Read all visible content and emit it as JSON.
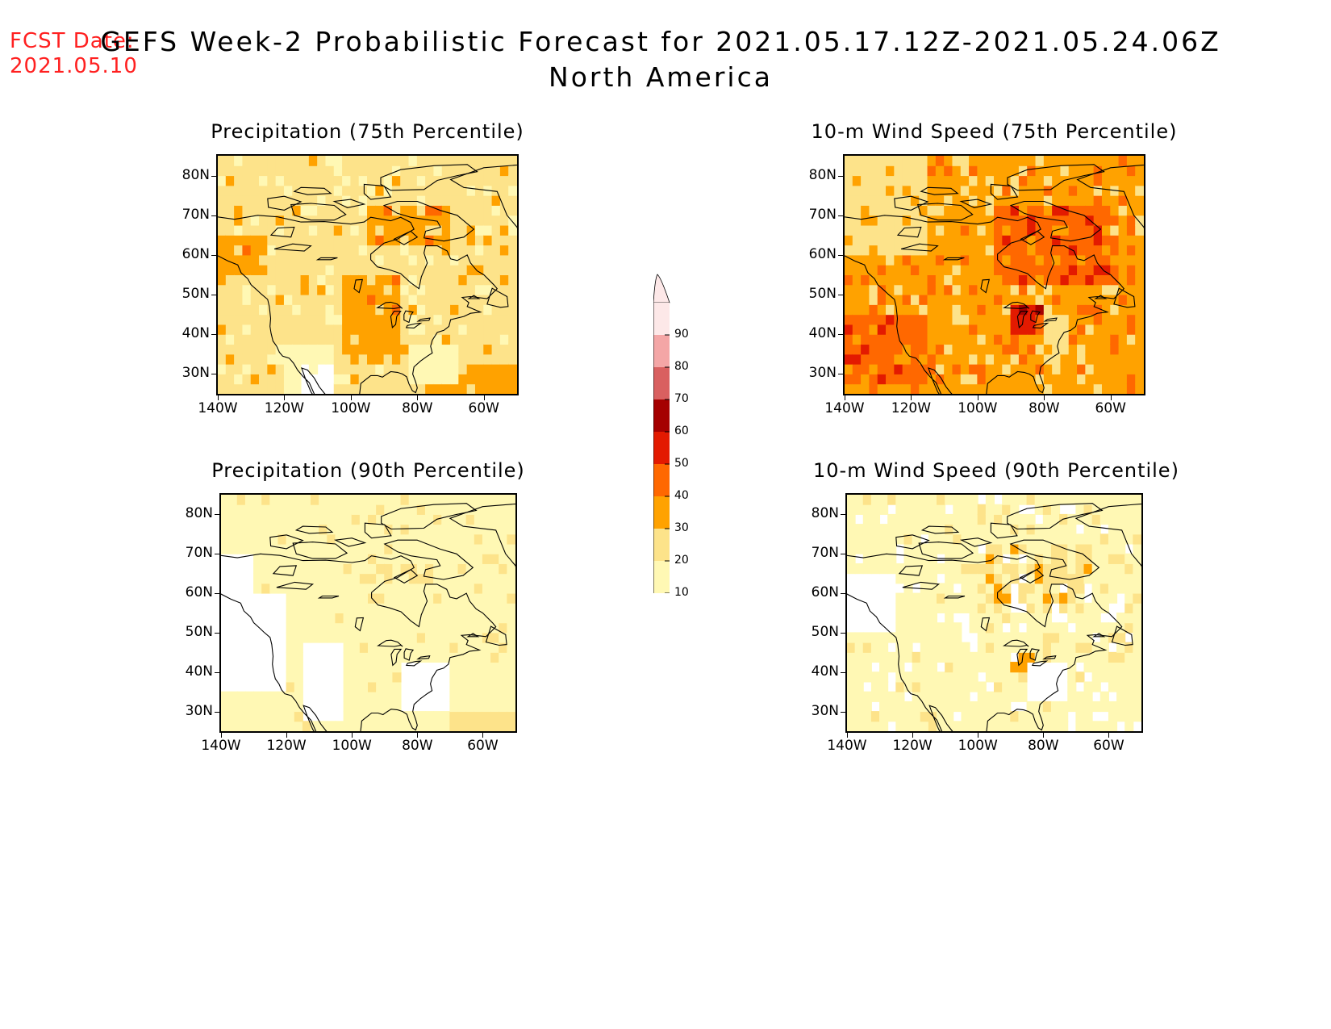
{
  "header": {
    "fcst_label": "FCST Date:",
    "fcst_date": "2021.05.10",
    "title_line1": "GEFS Week-2 Probabilistic Forecast for 2021.05.17.12Z-2021.05.24.06Z",
    "title_line2": "North America"
  },
  "panels": [
    {
      "title": "Precipitation (75th Percentile)",
      "level": "high-prec"
    },
    {
      "title": "10-m Wind Speed (75th Percentile)",
      "level": "high-wind"
    },
    {
      "title": "Precipitation (90th Percentile)",
      "level": "low-prec"
    },
    {
      "title": "10-m Wind Speed (90th Percentile)",
      "level": "low-wind"
    }
  ],
  "axes": {
    "lat_labels": [
      "80N",
      "70N",
      "60N",
      "50N",
      "40N",
      "30N"
    ],
    "lon_labels": [
      "140W",
      "120W",
      "100W",
      "80W",
      "60W"
    ]
  },
  "colorbar": {
    "levels": [
      "10",
      "20",
      "30",
      "40",
      "50",
      "60",
      "70",
      "80",
      "90"
    ],
    "colors": [
      "#fff8b4",
      "#fde38a",
      "#ffa200",
      "#ff6800",
      "#e31a00",
      "#a50000",
      "#d96060",
      "#f4a6a6",
      "#fde8e8"
    ]
  }
}
